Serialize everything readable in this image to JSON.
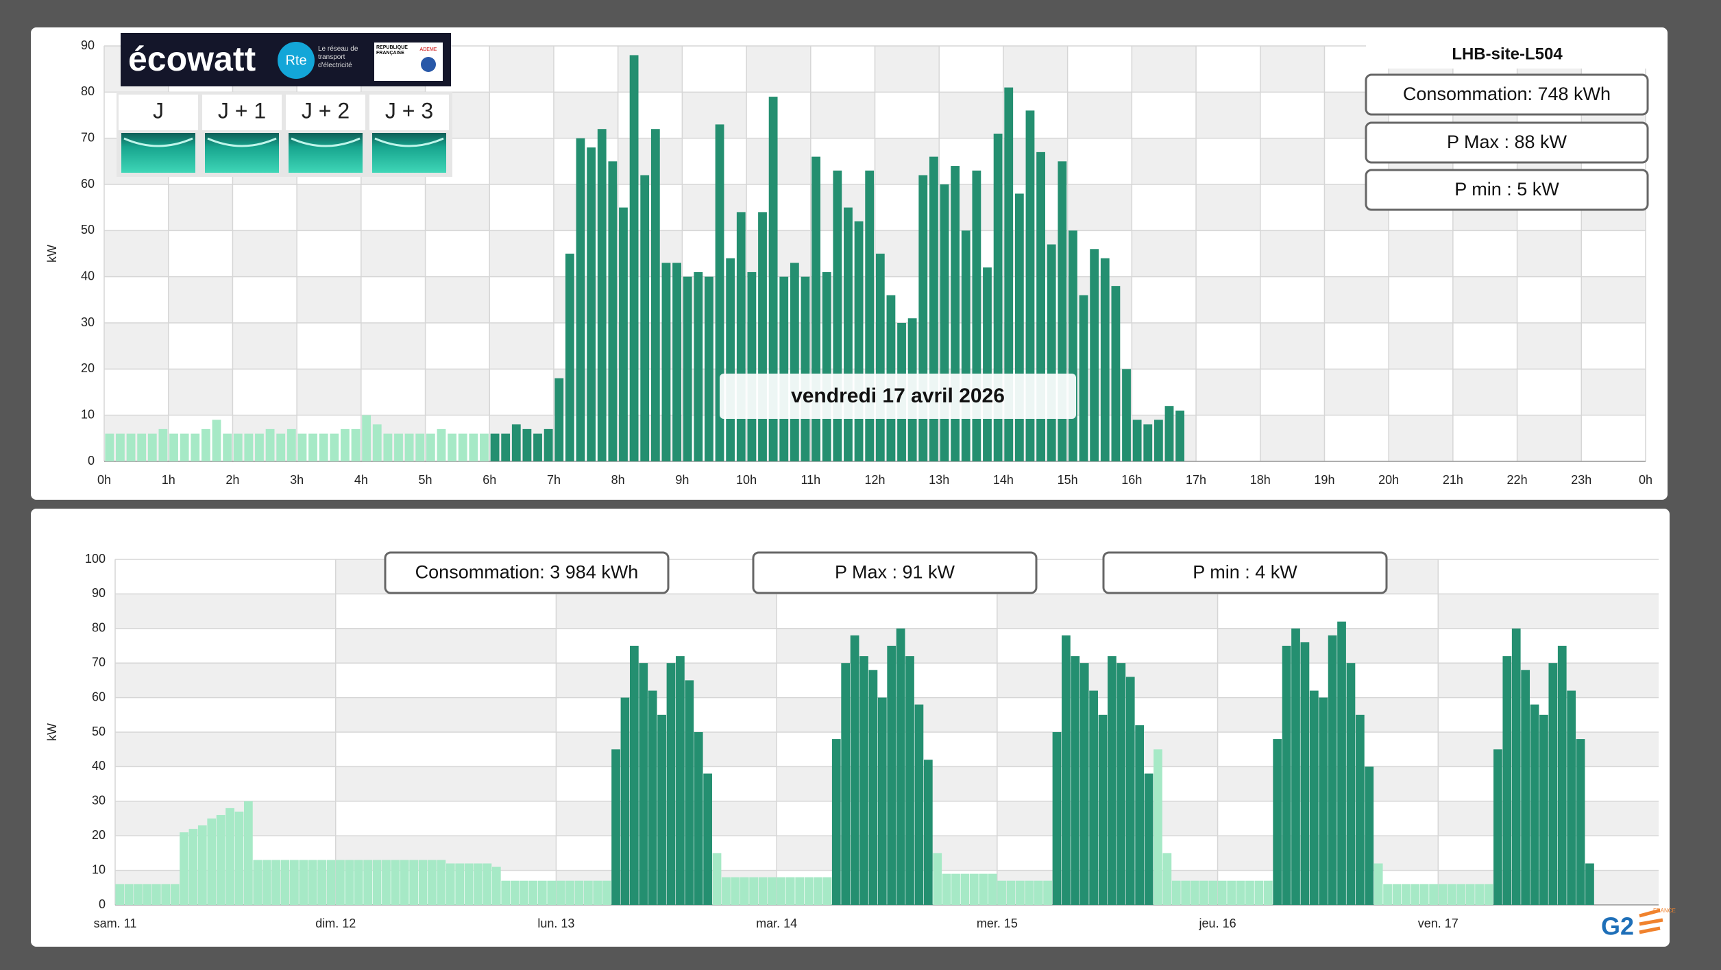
{
  "header": {
    "logo_text": "écowatt",
    "rte": "Rte",
    "rte_tagline": "Le réseau de transport d'électricité",
    "republique": "RÉPUBLIQUE FRANÇAISE",
    "ademe": "ADEME",
    "days": [
      "J",
      "J + 1",
      "J + 2",
      "J + 3"
    ]
  },
  "site": "LHB-site-L504",
  "day_stats": [
    "Consommation: 748 kWh",
    "P Max : 88 kW",
    "P min : 5 kW"
  ],
  "date_label": "vendredi 17 avril 2026",
  "week_stats": [
    "Consommation: 3 984 kWh",
    "P Max : 91 kW",
    "P min : 4 kW"
  ],
  "footer_logo": {
    "text": "G2",
    "tag": "FRANCE"
  },
  "chart_data": [
    {
      "type": "bar",
      "y_label": "kW",
      "x": [
        0,
        10,
        20,
        30,
        40,
        50,
        60,
        70,
        80,
        90,
        100,
        110,
        120,
        130,
        140,
        150,
        160,
        170,
        180,
        190,
        200,
        210,
        220,
        230,
        240,
        250,
        260,
        270,
        280,
        290,
        300,
        310,
        320,
        330,
        340,
        350,
        360,
        370,
        380,
        390,
        400,
        410,
        420,
        430,
        440,
        450,
        460,
        470,
        480,
        490,
        500,
        510,
        520,
        530,
        540,
        550,
        560,
        570,
        580,
        590,
        600,
        610,
        620,
        630,
        640,
        650,
        660,
        670,
        680,
        690,
        700,
        710,
        720,
        730,
        740,
        750,
        760,
        770,
        780,
        790,
        800,
        810,
        820,
        830,
        840,
        850,
        860,
        870,
        880,
        890,
        900,
        910,
        920,
        930,
        940,
        950,
        960,
        970,
        980,
        990,
        1000
      ],
      "series": [
        {
          "color": "#a6e9c6",
          "values": [
            6,
            6,
            6,
            6,
            6,
            7,
            6,
            6,
            6,
            7,
            9,
            6,
            6,
            6,
            6,
            7,
            6,
            7,
            6,
            6,
            6,
            6,
            7,
            7,
            10,
            8,
            6,
            6,
            6,
            6,
            6,
            7,
            6,
            6,
            6,
            6,
            null,
            null,
            null,
            null,
            null,
            null,
            null,
            null,
            null,
            null,
            null,
            null,
            null,
            null,
            null,
            null,
            null,
            null,
            null,
            null,
            null,
            null,
            null,
            null,
            null,
            null,
            null,
            null,
            null,
            null,
            null,
            null,
            null,
            null,
            null,
            null,
            null,
            null,
            null,
            null,
            null,
            null,
            null,
            null,
            null,
            null,
            null,
            null,
            null,
            null,
            null,
            null,
            null,
            null,
            null,
            null,
            null,
            null,
            null,
            null,
            null,
            null,
            null,
            null,
            null
          ]
        },
        {
          "color": "#248f70",
          "values": [
            null,
            null,
            null,
            null,
            null,
            null,
            null,
            null,
            null,
            null,
            null,
            null,
            null,
            null,
            null,
            null,
            null,
            null,
            null,
            null,
            null,
            null,
            null,
            null,
            null,
            null,
            null,
            null,
            null,
            null,
            null,
            null,
            null,
            null,
            null,
            null,
            6,
            6,
            8,
            7,
            6,
            7,
            18,
            45,
            70,
            68,
            72,
            65,
            55,
            88,
            62,
            72,
            43,
            43,
            40,
            41,
            40,
            73,
            44,
            54,
            41,
            54,
            79,
            40,
            43,
            40,
            66,
            41,
            63,
            55,
            52,
            63,
            45,
            36,
            30,
            31,
            62,
            66,
            60,
            64,
            50,
            63,
            42,
            71,
            81,
            58,
            76,
            67,
            47,
            65,
            50,
            36,
            46,
            44,
            38,
            20,
            9,
            8,
            9,
            12,
            11
          ]
        }
      ],
      "xlim": [
        0,
        1440
      ],
      "xticks": [
        {
          "value": 0,
          "label": "0h"
        },
        {
          "value": 60,
          "label": "1h"
        },
        {
          "value": 120,
          "label": "2h"
        },
        {
          "value": 180,
          "label": "3h"
        },
        {
          "value": 240,
          "label": "4h"
        },
        {
          "value": 300,
          "label": "5h"
        },
        {
          "value": 360,
          "label": "6h"
        },
        {
          "value": 420,
          "label": "7h"
        },
        {
          "value": 480,
          "label": "8h"
        },
        {
          "value": 540,
          "label": "9h"
        },
        {
          "value": 600,
          "label": "10h"
        },
        {
          "value": 660,
          "label": "11h"
        },
        {
          "value": 720,
          "label": "12h"
        },
        {
          "value": 780,
          "label": "13h"
        },
        {
          "value": 840,
          "label": "14h"
        },
        {
          "value": 900,
          "label": "15h"
        },
        {
          "value": 960,
          "label": "16h"
        },
        {
          "value": 1020,
          "label": "17h"
        },
        {
          "value": 1080,
          "label": "18h"
        },
        {
          "value": 1140,
          "label": "19h"
        },
        {
          "value": 1200,
          "label": "20h"
        },
        {
          "value": 1260,
          "label": "21h"
        },
        {
          "value": 1320,
          "label": "22h"
        },
        {
          "value": 1380,
          "label": "23h"
        },
        {
          "value": 1440,
          "label": "0h"
        }
      ],
      "ylim": [
        0,
        90
      ],
      "yticks": [
        0,
        10,
        20,
        30,
        40,
        50,
        60,
        70,
        80,
        90
      ],
      "grid": true
    },
    {
      "type": "bar",
      "y_label": "kW",
      "x": [
        0,
        1,
        2,
        3,
        4,
        5,
        6,
        7,
        8,
        9,
        10,
        11,
        12,
        13,
        14,
        15,
        16,
        17,
        18,
        19,
        20,
        21,
        22,
        23,
        24,
        25,
        26,
        27,
        28,
        29,
        30,
        31,
        32,
        33,
        34,
        35,
        36,
        37,
        38,
        39,
        40,
        41,
        42,
        43,
        44,
        45,
        46,
        47,
        48,
        49,
        50,
        51,
        52,
        53,
        54,
        55,
        56,
        57,
        58,
        59,
        60,
        61,
        62,
        63,
        64,
        65,
        66,
        67,
        68,
        69,
        70,
        71,
        72,
        73,
        74,
        75,
        76,
        77,
        78,
        79,
        80,
        81,
        82,
        83,
        84,
        85,
        86,
        87,
        88,
        89,
        90,
        91,
        92,
        93,
        94,
        95,
        96,
        97,
        98,
        99,
        100,
        101,
        102,
        103,
        104,
        105,
        106,
        107,
        108,
        109,
        110,
        111,
        112,
        113,
        114,
        115,
        116,
        117,
        118,
        119,
        120,
        121,
        122,
        123,
        124,
        125,
        126,
        127,
        128,
        129,
        130,
        131,
        132,
        133,
        134,
        135,
        136,
        137,
        138,
        139,
        140,
        141,
        142,
        143,
        144,
        145,
        146,
        147,
        148,
        149,
        150,
        151,
        152,
        153,
        154,
        155,
        156,
        157,
        158,
        159,
        160
      ],
      "series": [
        {
          "color": "#a6e9c6",
          "values": [
            6,
            6,
            6,
            6,
            6,
            6,
            6,
            21,
            22,
            23,
            25,
            26,
            28,
            27,
            30,
            13,
            13,
            13,
            13,
            13,
            13,
            13,
            13,
            13,
            13,
            13,
            13,
            13,
            13,
            13,
            13,
            13,
            13,
            13,
            13,
            13,
            12,
            12,
            12,
            12,
            12,
            11,
            7,
            7,
            7,
            7,
            7,
            7,
            7,
            7,
            7,
            7,
            7,
            7,
            null,
            null,
            null,
            null,
            null,
            null,
            null,
            null,
            null,
            null,
            null,
            15,
            8,
            8,
            8,
            8,
            8,
            8,
            8,
            8,
            8,
            8,
            8,
            8,
            null,
            null,
            null,
            null,
            null,
            null,
            null,
            null,
            null,
            null,
            null,
            15,
            9,
            9,
            9,
            9,
            9,
            9,
            7,
            7,
            7,
            7,
            7,
            7,
            null,
            null,
            null,
            null,
            null,
            null,
            null,
            null,
            null,
            null,
            null,
            45,
            15,
            7,
            7,
            7,
            7,
            7,
            7,
            7,
            7,
            7,
            7,
            7,
            null,
            null,
            null,
            null,
            null,
            null,
            null,
            null,
            null,
            null,
            null,
            12,
            6,
            6,
            6,
            6,
            6,
            6,
            6,
            6,
            6,
            6,
            6,
            6,
            null,
            null,
            null,
            null,
            null,
            null,
            null,
            null,
            null,
            null,
            null
          ]
        },
        {
          "color": "#248f70",
          "values": [
            null,
            null,
            null,
            null,
            null,
            null,
            null,
            null,
            null,
            null,
            null,
            null,
            null,
            null,
            null,
            null,
            null,
            null,
            null,
            null,
            null,
            null,
            null,
            null,
            null,
            null,
            null,
            null,
            null,
            null,
            null,
            null,
            null,
            null,
            null,
            null,
            null,
            null,
            null,
            null,
            null,
            null,
            null,
            null,
            null,
            null,
            null,
            null,
            null,
            null,
            null,
            null,
            null,
            null,
            45,
            60,
            75,
            70,
            62,
            55,
            70,
            72,
            65,
            50,
            38,
            null,
            null,
            null,
            null,
            null,
            null,
            null,
            null,
            null,
            null,
            null,
            null,
            null,
            48,
            70,
            78,
            72,
            68,
            60,
            75,
            80,
            72,
            58,
            42,
            null,
            null,
            null,
            null,
            null,
            null,
            null,
            null,
            null,
            null,
            null,
            null,
            null,
            50,
            78,
            72,
            70,
            62,
            55,
            72,
            70,
            66,
            52,
            38,
            null,
            null,
            null,
            null,
            null,
            null,
            null,
            null,
            null,
            null,
            null,
            null,
            null,
            48,
            75,
            80,
            76,
            62,
            60,
            78,
            82,
            70,
            55,
            40,
            null,
            null,
            null,
            null,
            null,
            null,
            null,
            null,
            null,
            null,
            null,
            null,
            null,
            45,
            72,
            80,
            68,
            58,
            55,
            70,
            75,
            62,
            48,
            12
          ]
        }
      ],
      "xlim": [
        0,
        168
      ],
      "xticks": [
        {
          "value": 0,
          "label": "sam. 11"
        },
        {
          "value": 24,
          "label": "dim. 12"
        },
        {
          "value": 48,
          "label": "lun. 13"
        },
        {
          "value": 72,
          "label": "mar. 14"
        },
        {
          "value": 96,
          "label": "mer. 15"
        },
        {
          "value": 120,
          "label": "jeu. 16"
        },
        {
          "value": 144,
          "label": "ven. 17"
        }
      ],
      "ylim": [
        0,
        100
      ],
      "yticks": [
        0,
        10,
        20,
        30,
        40,
        50,
        60,
        70,
        80,
        90,
        100
      ],
      "grid": true
    }
  ]
}
